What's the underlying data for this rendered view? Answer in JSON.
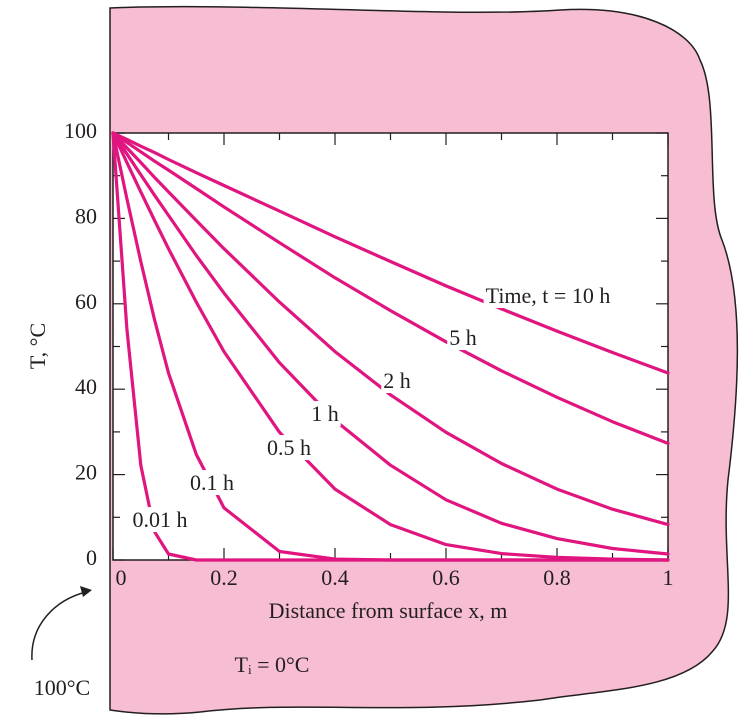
{
  "chart_data": {
    "type": "line",
    "x": [
      0,
      0.025,
      0.05,
      0.075,
      0.1,
      0.15,
      0.2,
      0.3,
      0.4,
      0.5,
      0.6,
      0.7,
      0.8,
      0.9,
      1
    ],
    "series": [
      {
        "name": "Time, t = 10 h",
        "color": "#e0157f",
        "values": [
          100,
          98.5,
          96.9,
          95.4,
          93.8,
          90.7,
          87.7,
          81.7,
          75.7,
          69.9,
          64.2,
          58.8,
          53.6,
          48.6,
          43.8
        ]
      },
      {
        "name": "5 h",
        "color": "#e0157f",
        "values": [
          100,
          97.8,
          95.6,
          93.4,
          91.3,
          87.0,
          82.7,
          74.3,
          66.1,
          58.4,
          51.1,
          44.3,
          38.1,
          32.4,
          27.3
        ]
      },
      {
        "name": "2 h",
        "color": "#e0157f",
        "values": [
          100,
          96.5,
          93.1,
          89.6,
          86.2,
          79.5,
          72.9,
          60.4,
          48.8,
          38.7,
          29.9,
          22.6,
          16.6,
          11.9,
          8.3
        ]
      },
      {
        "name": "1 h",
        "color": "#e0157f",
        "values": [
          100,
          95.1,
          90.2,
          85.4,
          80.7,
          71.3,
          62.5,
          46.2,
          32.7,
          22.2,
          14.1,
          8.6,
          5.0,
          2.7,
          1.4
        ]
      },
      {
        "name": "0.5 h",
        "color": "#e0157f",
        "values": [
          100,
          93.1,
          86.2,
          79.5,
          72.9,
          60.4,
          48.8,
          29.9,
          16.6,
          8.3,
          3.6,
          1.5,
          0.6,
          0.2,
          0
        ]
      },
      {
        "name": "0.1 h",
        "color": "#e0157f",
        "values": [
          100,
          84.6,
          69.9,
          56.2,
          43.8,
          24.7,
          12.2,
          2.0,
          0.2,
          0,
          0,
          0,
          0,
          0,
          0
        ]
      },
      {
        "name": "0.01 h",
        "color": "#e0157f",
        "values": [
          100,
          54.1,
          22.2,
          6.6,
          1.4,
          0,
          0,
          0,
          0,
          0,
          0,
          0,
          0,
          0,
          0
        ]
      }
    ],
    "xlim": [
      0,
      1
    ],
    "ylim": [
      0,
      100
    ],
    "xticks": [
      0,
      0.2,
      0.4,
      0.6,
      0.8,
      1
    ],
    "yticks": [
      0,
      20,
      40,
      60,
      80,
      100
    ],
    "xminorticks": [
      0.1,
      0.3,
      0.5,
      0.7,
      0.9
    ],
    "yminorticks": [
      10,
      30,
      50,
      70,
      90
    ],
    "xlabel": "Distance from surface x, m",
    "ylabel": "T, °C",
    "annotations": [
      "Tᵢ = 0°C",
      "100°C"
    ]
  }
}
